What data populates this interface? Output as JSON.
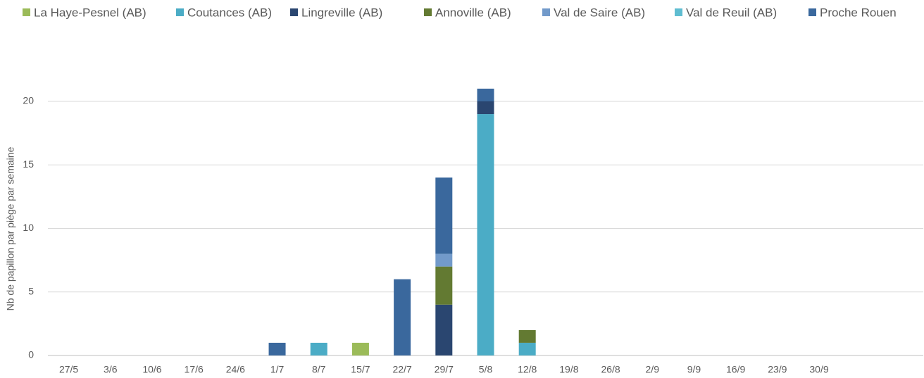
{
  "chart_data": {
    "type": "stacked_bar",
    "y_axis_label": "Nb de papillon par piège par semaine",
    "categories": [
      "27/5",
      "3/6",
      "10/6",
      "17/6",
      "24/6",
      "1/7",
      "8/7",
      "15/7",
      "22/7",
      "29/7",
      "5/8",
      "12/8",
      "19/8",
      "26/8",
      "2/9",
      "9/9",
      "16/9",
      "23/9",
      "30/9",
      null,
      null
    ],
    "series": [
      {
        "name": "La Haye-Pesnel (AB)",
        "color": "#9bbb59",
        "values": [
          0,
          0,
          0,
          0,
          0,
          0,
          0,
          1,
          0,
          0,
          0,
          0,
          0,
          0,
          0,
          0,
          0,
          0,
          0,
          null,
          null
        ]
      },
      {
        "name": "Coutances (AB)",
        "color": "#4bacc6",
        "values": [
          0,
          0,
          0,
          0,
          0,
          0,
          1,
          0,
          0,
          0,
          19,
          1,
          0,
          0,
          0,
          0,
          0,
          0,
          0,
          null,
          null
        ]
      },
      {
        "name": "Lingreville (AB)",
        "color": "#2a4670",
        "values": [
          0,
          0,
          0,
          0,
          0,
          0,
          0,
          0,
          0,
          4,
          1,
          0,
          0,
          0,
          0,
          0,
          0,
          0,
          0,
          null,
          null
        ]
      },
      {
        "name": "Annoville (AB)",
        "color": "#637a32",
        "values": [
          0,
          0,
          0,
          0,
          0,
          0,
          0,
          0,
          0,
          3,
          0,
          1,
          0,
          0,
          0,
          0,
          0,
          0,
          0,
          null,
          null
        ]
      },
      {
        "name": "Val de Saire (AB)",
        "color": "#729aca",
        "values": [
          0,
          0,
          0,
          0,
          0,
          0,
          0,
          0,
          0,
          1,
          0,
          0,
          0,
          0,
          0,
          0,
          0,
          0,
          0,
          null,
          null
        ]
      },
      {
        "name": "Val de Reuil (AB)",
        "color": "#5fbdd1",
        "values": [
          0,
          0,
          0,
          0,
          0,
          0,
          0,
          0,
          0,
          0,
          0,
          0,
          0,
          0,
          0,
          0,
          0,
          0,
          0,
          null,
          null
        ]
      },
      {
        "name": "Proche Rouen",
        "color": "#3a689d",
        "values": [
          0,
          0,
          0,
          0,
          0,
          1,
          0,
          0,
          6,
          6,
          1,
          0,
          0,
          0,
          0,
          0,
          0,
          0,
          0,
          null,
          null
        ]
      }
    ],
    "ylim": [
      0,
      22
    ],
    "yticks": [
      0,
      5,
      10,
      15,
      20
    ],
    "grid": true,
    "legend": "top"
  }
}
